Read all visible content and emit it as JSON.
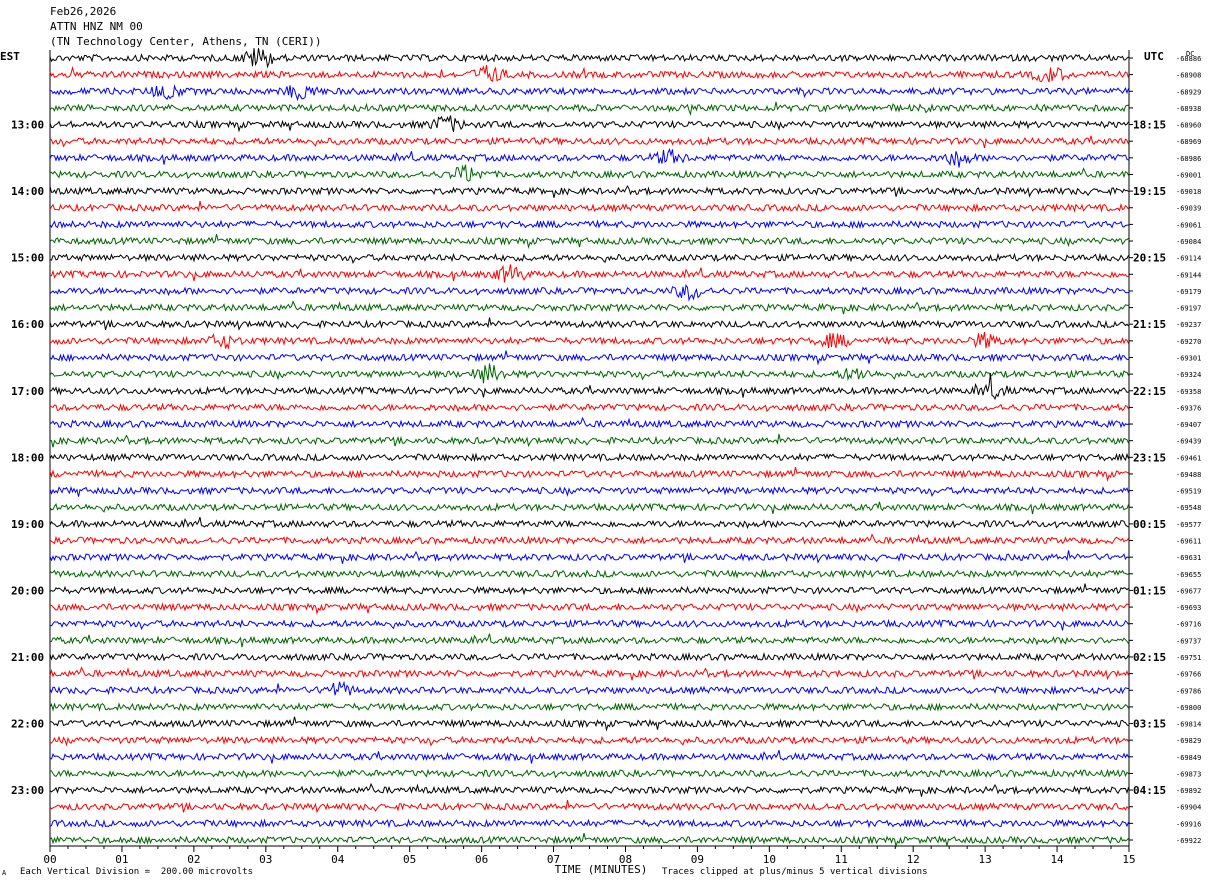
{
  "header": {
    "date": "Feb26,2026",
    "station": "ATTN HNZ NM 00",
    "location": "(TN Technology Center, Athens, TN (CERI))"
  },
  "left_tz": "EST",
  "right_tz": "UTC",
  "dc_label": "DC",
  "footer": {
    "scale_note": "Each Vertical Division =  200.00 microvolts",
    "clip_note": "Traces clipped at plus/minus 5 vertical divisions",
    "corner_mark": "A"
  },
  "colors": {
    "trace_cycle": [
      "#000000",
      "#ff0000",
      "#0000ff",
      "#006400"
    ]
  },
  "chart_data": {
    "type": "line",
    "title": "Feb26,2026 ATTN HNZ NM 00 (TN Technology Center, Athens, TN (CERI))",
    "xlabel": "TIME (MINUTES)",
    "x_ticks": [
      "00",
      "01",
      "02",
      "03",
      "04",
      "05",
      "06",
      "07",
      "08",
      "09",
      "10",
      "11",
      "12",
      "13",
      "14",
      "15"
    ],
    "xlim": [
      0,
      15
    ],
    "row_count": 48,
    "row_minutes": 15,
    "left_time_labels": [
      "13:00",
      "14:00",
      "15:00",
      "16:00",
      "17:00",
      "18:00",
      "19:00",
      "20:00",
      "21:00",
      "22:00",
      "23:00"
    ],
    "right_time_labels": [
      "18:15",
      "19:15",
      "20:15",
      "21:15",
      "22:15",
      "23:15",
      "00:15",
      "01:15",
      "02:15",
      "03:15",
      "04:15"
    ],
    "hour_label_first_row": 4,
    "dc_offsets": [
      "-68886",
      "-68908",
      "-68929",
      "-68938",
      "-68960",
      "-68969",
      "-68986",
      "-69001",
      "-69018",
      "-69039",
      "-69061",
      "-69084",
      "-69114",
      "-69144",
      "-69179",
      "-69197",
      "-69237",
      "-69270",
      "-69301",
      "-69324",
      "-69358",
      "-69376",
      "-69407",
      "-69439",
      "-69461",
      "-69488",
      "-69519",
      "-69548",
      "-69577",
      "-69611",
      "-69631",
      "-69655",
      "-69677",
      "-69693",
      "-69716",
      "-69737",
      "-69751",
      "-69766",
      "-69786",
      "-69800",
      "-69814",
      "-69829",
      "-69849",
      "-69873",
      "-69892",
      "-69904",
      "-69916",
      "-69922"
    ],
    "events": [
      {
        "row": 0,
        "minute": 2.9,
        "amp": 3.0
      },
      {
        "row": 1,
        "minute": 6.1,
        "amp": 2.5
      },
      {
        "row": 1,
        "minute": 13.9,
        "amp": 2.2
      },
      {
        "row": 2,
        "minute": 1.6,
        "amp": 2.0
      },
      {
        "row": 2,
        "minute": 3.5,
        "amp": 2.2
      },
      {
        "row": 4,
        "minute": 5.5,
        "amp": 2.4
      },
      {
        "row": 6,
        "minute": 8.6,
        "amp": 2.0
      },
      {
        "row": 6,
        "minute": 12.6,
        "amp": 1.8
      },
      {
        "row": 7,
        "minute": 5.8,
        "amp": 2.4
      },
      {
        "row": 13,
        "minute": 6.4,
        "amp": 2.4
      },
      {
        "row": 14,
        "minute": 8.9,
        "amp": 2.2
      },
      {
        "row": 17,
        "minute": 2.4,
        "amp": 1.8
      },
      {
        "row": 17,
        "minute": 10.9,
        "amp": 1.8
      },
      {
        "row": 17,
        "minute": 13.0,
        "amp": 2.0
      },
      {
        "row": 19,
        "minute": 6.1,
        "amp": 2.6
      },
      {
        "row": 19,
        "minute": 11.2,
        "amp": 1.6
      },
      {
        "row": 20,
        "minute": 13.1,
        "amp": 1.8
      },
      {
        "row": 38,
        "minute": 4.0,
        "amp": 2.0
      }
    ]
  }
}
